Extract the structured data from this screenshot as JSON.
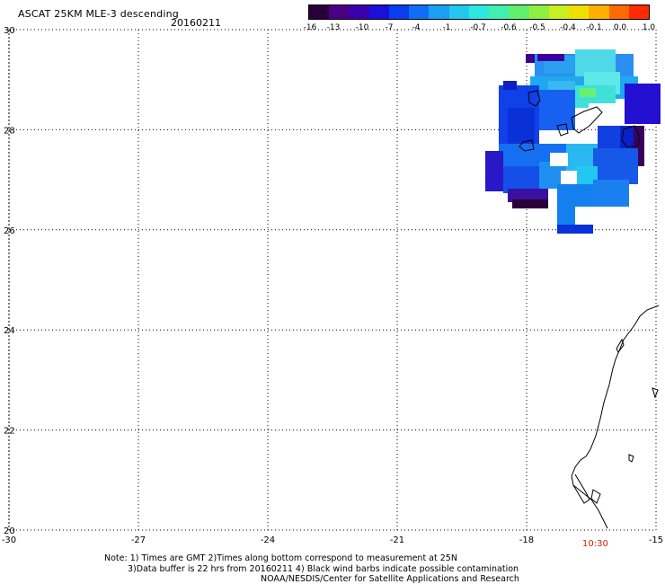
{
  "title": "ASCAT 25KM MLE-3 descending",
  "date": "20160211",
  "colorbar": {
    "colors": [
      "#2a003a",
      "#4b0082",
      "#3a00b0",
      "#1a10d8",
      "#0a3cf0",
      "#0f6ef5",
      "#1a9ff5",
      "#22c8f0",
      "#2ee8e0",
      "#40f0b0",
      "#60f070",
      "#90f040",
      "#c8f020",
      "#f0e000",
      "#ffb000",
      "#ff6a00",
      "#ff2a00"
    ],
    "labels": [
      "-16",
      "-13",
      "-10",
      "-7",
      "-4",
      "-1",
      "-0.7",
      "-0.6",
      "-0.5",
      "-0.4",
      "-0.1",
      "0.0",
      "1.0"
    ]
  },
  "axes": {
    "x_labels": [
      "-30",
      "-27",
      "-24",
      "-21",
      "-18",
      "-15"
    ],
    "y_labels": [
      "30",
      "28",
      "26",
      "24",
      "22",
      "20"
    ],
    "lon_range": [
      -30,
      -15
    ],
    "lat_range": [
      20,
      30
    ]
  },
  "time_label": "10:30",
  "notes": {
    "line1": "Note: 1) Times are GMT 2)Times along bottom correspond to measurement at 25N",
    "line2": "3)Data buffer is 22 hrs from 20160211 4) Black wind barbs indicate possible contamination",
    "line3": "NOAA/NESDIS/Center for Satellite Applications and Research"
  }
}
